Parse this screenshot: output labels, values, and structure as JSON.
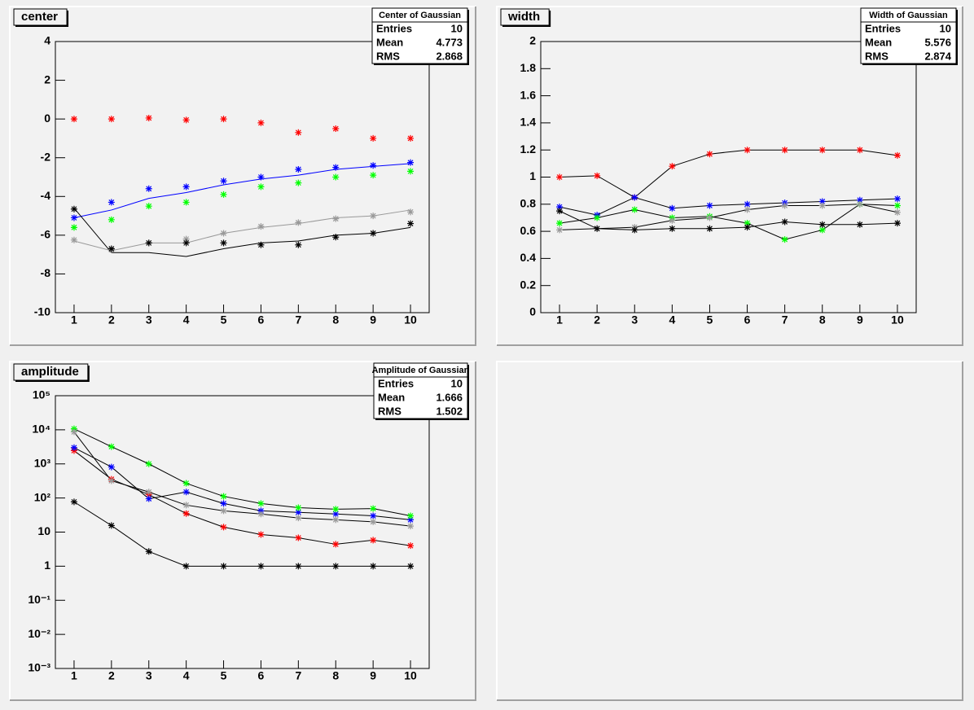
{
  "chart_data": [
    {
      "type": "line",
      "title": "center",
      "stats": {
        "title": "Center of Gaussian",
        "rows": [
          {
            "label": "Entries",
            "value": 10
          },
          {
            "label": "Mean",
            "value": 4.773
          },
          {
            "label": "RMS",
            "value": 2.868
          }
        ]
      },
      "x": [
        1,
        2,
        3,
        4,
        5,
        6,
        7,
        8,
        9,
        10
      ],
      "xlim": [
        0.5,
        10.5
      ],
      "xticks": [
        1,
        2,
        3,
        4,
        5,
        6,
        7,
        8,
        9,
        10
      ],
      "ylim": [
        -10,
        4
      ],
      "yticks": [
        -10,
        -8,
        -6,
        -4,
        -2,
        0,
        2,
        4
      ],
      "series": [
        {
          "style": "line",
          "color": "#0000ff",
          "values": [
            -5.1,
            -4.7,
            -4.1,
            -3.8,
            -3.4,
            -3.1,
            -2.9,
            -2.6,
            -2.45,
            -2.3
          ]
        },
        {
          "style": "line",
          "color": "#999999",
          "values": [
            -6.3,
            -6.8,
            -6.4,
            -6.4,
            -5.9,
            -5.6,
            -5.4,
            -5.1,
            -5.0,
            -4.7
          ]
        },
        {
          "style": "line",
          "color": "#000000",
          "values": [
            -4.6,
            -6.9,
            -6.9,
            -7.1,
            -6.7,
            -6.4,
            -6.3,
            -6.0,
            -5.9,
            -5.6
          ]
        },
        {
          "style": "marker",
          "color": "#ff0000",
          "values": [
            0,
            0,
            0.05,
            -0.05,
            0,
            -0.2,
            -0.7,
            -0.5,
            -1,
            -1
          ]
        },
        {
          "style": "marker",
          "color": "#0000ff",
          "values": [
            -5.1,
            -4.3,
            -3.6,
            -3.5,
            -3.2,
            -3.0,
            -2.6,
            -2.5,
            -2.4,
            -2.25
          ]
        },
        {
          "style": "marker",
          "color": "#00ff00",
          "values": [
            -5.6,
            -5.2,
            -4.5,
            -4.3,
            -3.9,
            -3.5,
            -3.3,
            -3.0,
            -2.9,
            -2.7
          ]
        },
        {
          "style": "marker",
          "color": "#999999",
          "values": [
            -6.25,
            -6.75,
            -6.4,
            -6.2,
            -5.9,
            -5.55,
            -5.35,
            -5.15,
            -5.0,
            -4.8
          ]
        },
        {
          "style": "marker",
          "color": "#000000",
          "values": [
            -4.65,
            -6.7,
            -6.4,
            -6.4,
            -6.4,
            -6.5,
            -6.5,
            -6.1,
            -5.9,
            -5.4
          ]
        }
      ]
    },
    {
      "type": "line",
      "title": "width",
      "stats": {
        "title": "Width of Gaussian",
        "rows": [
          {
            "label": "Entries",
            "value": 10
          },
          {
            "label": "Mean",
            "value": 5.576
          },
          {
            "label": "RMS",
            "value": 2.874
          }
        ]
      },
      "x": [
        1,
        2,
        3,
        4,
        5,
        6,
        7,
        8,
        9,
        10
      ],
      "xlim": [
        0.5,
        10.5
      ],
      "xticks": [
        1,
        2,
        3,
        4,
        5,
        6,
        7,
        8,
        9,
        10
      ],
      "ylim": [
        0,
        2
      ],
      "yticks": [
        0,
        0.2,
        0.4,
        0.6,
        0.8,
        1,
        1.2,
        1.4,
        1.6,
        1.8,
        2
      ],
      "series": [
        {
          "style": "marker",
          "color": "#ff0000",
          "line_color": "#000000",
          "values": [
            1.0,
            1.01,
            0.85,
            1.08,
            1.17,
            1.2,
            1.2,
            1.2,
            1.2,
            1.16
          ]
        },
        {
          "style": "marker",
          "color": "#0000ff",
          "line_color": "#000000",
          "values": [
            0.78,
            0.72,
            0.85,
            0.77,
            0.79,
            0.8,
            0.81,
            0.82,
            0.83,
            0.84
          ]
        },
        {
          "style": "marker",
          "color": "#00ff00",
          "line_color": "#000000",
          "values": [
            0.66,
            0.7,
            0.76,
            0.7,
            0.71,
            0.66,
            0.54,
            0.61,
            0.8,
            0.79
          ]
        },
        {
          "style": "marker",
          "color": "#999999",
          "line_color": "#000000",
          "values": [
            0.61,
            0.62,
            0.63,
            0.68,
            0.7,
            0.76,
            0.79,
            0.79,
            0.8,
            0.74
          ]
        },
        {
          "style": "marker",
          "color": "#000000",
          "line_color": "#000000",
          "values": [
            0.75,
            0.62,
            0.61,
            0.62,
            0.62,
            0.63,
            0.67,
            0.65,
            0.65,
            0.66
          ]
        }
      ]
    },
    {
      "type": "line",
      "title": "amplitude",
      "log_y": true,
      "stats": {
        "title": "Amplitude of Gaussian",
        "rows": [
          {
            "label": "Entries",
            "value": 10
          },
          {
            "label": "Mean",
            "value": 1.666
          },
          {
            "label": "RMS",
            "value": 1.502
          }
        ]
      },
      "x": [
        1,
        2,
        3,
        4,
        5,
        6,
        7,
        8,
        9,
        10
      ],
      "xlim": [
        0.5,
        10.5
      ],
      "xticks": [
        1,
        2,
        3,
        4,
        5,
        6,
        7,
        8,
        9,
        10
      ],
      "ylim": [
        0.001,
        100000
      ],
      "yticks": [
        {
          "value": 0.001,
          "label": "10⁻³"
        },
        {
          "value": 0.01,
          "label": "10⁻²"
        },
        {
          "value": 0.1,
          "label": "10⁻¹"
        },
        1,
        10,
        {
          "value": 100,
          "label": "10²"
        },
        {
          "value": 1000,
          "label": "10³"
        },
        {
          "value": 10000,
          "label": "10⁴"
        },
        {
          "value": 100000,
          "label": "10⁵"
        }
      ],
      "series": [
        {
          "style": "marker",
          "color": "#ff0000",
          "line_color": "#000000",
          "values": [
            2450,
            355,
            126,
            35,
            14,
            8.5,
            6.8,
            4.4,
            5.8,
            4
          ]
        },
        {
          "style": "marker",
          "color": "#0000ff",
          "line_color": "#000000",
          "values": [
            3000,
            810,
            95,
            150,
            69,
            42,
            38,
            34,
            30,
            23
          ]
        },
        {
          "style": "marker",
          "color": "#00ff00",
          "line_color": "#000000",
          "values": [
            10700,
            3200,
            1000,
            270,
            112,
            69,
            52,
            47,
            49,
            30
          ]
        },
        {
          "style": "marker",
          "color": "#999999",
          "line_color": "#000000",
          "values": [
            8700,
            320,
            150,
            62,
            42,
            34,
            26,
            23,
            20,
            15
          ]
        },
        {
          "style": "marker",
          "color": "#000000",
          "line_color": "#000000",
          "values": [
            77,
            15.6,
            2.7,
            1,
            1,
            1,
            1,
            1,
            1,
            1
          ]
        }
      ]
    }
  ]
}
